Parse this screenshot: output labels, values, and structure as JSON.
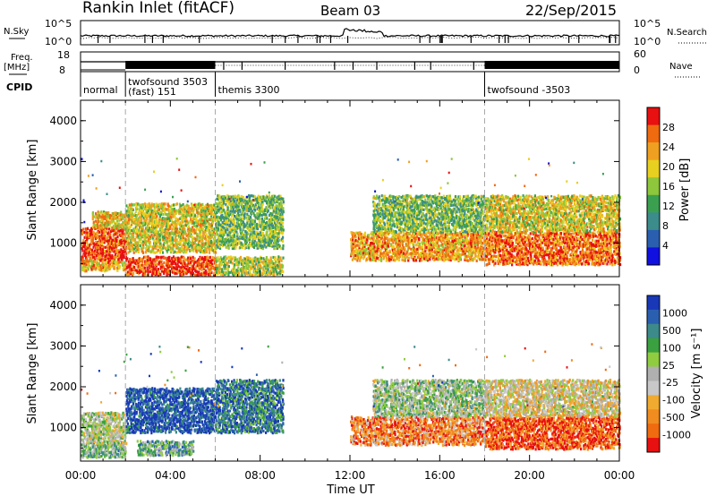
{
  "header": {
    "title": "Rankin Inlet (fitACF)",
    "beam": "Beam 03",
    "date": "22/Sep/2015"
  },
  "sky_panel": {
    "left_label": "N.Sky",
    "right_label": "N.Search",
    "left_ticks": [
      "10^5",
      "10^0"
    ],
    "right_ticks": [
      "10^5",
      "10^0"
    ]
  },
  "freq_panel": {
    "left_label_line1": "Freq.",
    "left_label_line2": "[MHz]",
    "right_label": "Nave",
    "left_ticks": [
      "18",
      "8"
    ],
    "right_ticks": [
      "60",
      "0"
    ]
  },
  "cpid": {
    "label": "CPID",
    "modes": [
      {
        "start_hour": 0.0,
        "text1": "normal",
        "text2": ""
      },
      {
        "start_hour": 2.0,
        "text1": "twofsound 3503",
        "text2": "(fast) 151"
      },
      {
        "start_hour": 6.0,
        "text1": "themis 3300",
        "text2": ""
      },
      {
        "start_hour": 18.0,
        "text1": "twofsound -3503",
        "text2": ""
      }
    ]
  },
  "colors": {
    "power_scale": [
      "#1010e0",
      "#2a5fb0",
      "#3c8c8c",
      "#3aa050",
      "#8ec63c",
      "#e8d020",
      "#f0a020",
      "#f06a10",
      "#e81010"
    ],
    "velocity_scale": [
      "#e81010",
      "#f06a10",
      "#f08c20",
      "#f0aa30",
      "#c8c8c8",
      "#b0b0b0",
      "#90cc40",
      "#3aa040",
      "#3c8a8a",
      "#2a5fb0",
      "#1838b8"
    ]
  },
  "chart_data": [
    {
      "type": "heatmap",
      "name": "power",
      "ylabel": "Slant Range [km]",
      "xlim_hours": [
        0,
        24
      ],
      "ylim_km": [
        180,
        4500
      ],
      "yticks": [
        "1000",
        "2000",
        "3000",
        "4000"
      ],
      "colorbar_label": "Power [dB]",
      "colorbar_ticks": [
        "4",
        "8",
        "12",
        "16",
        "20",
        "24",
        "28"
      ],
      "scatter_regions": [
        {
          "t0": 0.0,
          "t1": 2.0,
          "r0": 600,
          "r1": 1400,
          "level": 0.88
        },
        {
          "t0": 0.5,
          "t1": 2.0,
          "r0": 1400,
          "r1": 1800,
          "level": 0.65
        },
        {
          "t0": 0.0,
          "t1": 2.0,
          "r0": 350,
          "r1": 600,
          "level": 0.7
        },
        {
          "t0": 2.0,
          "t1": 6.0,
          "r0": 250,
          "r1": 700,
          "level": 0.9
        },
        {
          "t0": 2.0,
          "t1": 6.0,
          "r0": 800,
          "r1": 2000,
          "level": 0.6
        },
        {
          "t0": 6.0,
          "t1": 9.0,
          "r0": 250,
          "r1": 700,
          "level": 0.55
        },
        {
          "t0": 6.0,
          "t1": 9.0,
          "r0": 900,
          "r1": 2200,
          "level": 0.45
        },
        {
          "t0": 12.0,
          "t1": 18.0,
          "r0": 600,
          "r1": 1300,
          "level": 0.72
        },
        {
          "t0": 13.0,
          "t1": 18.0,
          "r0": 1300,
          "r1": 2200,
          "level": 0.45
        },
        {
          "t0": 18.0,
          "t1": 24.0,
          "r0": 500,
          "r1": 1300,
          "level": 0.82
        },
        {
          "t0": 18.0,
          "t1": 24.0,
          "r0": 1300,
          "r1": 2200,
          "level": 0.6
        }
      ]
    },
    {
      "type": "heatmap",
      "name": "velocity",
      "ylabel": "Slant Range [km]",
      "xlabel": "Time UT",
      "xlim_hours": [
        0,
        24
      ],
      "ylim_km": [
        180,
        4500
      ],
      "yticks": [
        "1000",
        "2000",
        "3000",
        "4000"
      ],
      "xticks": [
        "00:00",
        "04:00",
        "08:00",
        "12:00",
        "16:00",
        "20:00",
        "00:00"
      ],
      "colorbar_label": "Velocity [m s⁻¹]",
      "colorbar_ticks": [
        "1000",
        "500",
        "100",
        "25",
        "-25",
        "-100",
        "-500",
        "-1000"
      ],
      "scatter_regions": [
        {
          "t0": 0.0,
          "t1": 2.0,
          "r0": 600,
          "r1": 1400,
          "level": 0.5
        },
        {
          "t0": 0.0,
          "t1": 2.0,
          "r0": 300,
          "r1": 600,
          "level": 0.6
        },
        {
          "t0": 2.0,
          "t1": 6.0,
          "r0": 900,
          "r1": 2000,
          "level": 0.92
        },
        {
          "t0": 2.5,
          "t1": 5.0,
          "r0": 350,
          "r1": 700,
          "level": 0.66
        },
        {
          "t0": 6.0,
          "t1": 9.0,
          "r0": 900,
          "r1": 2200,
          "level": 0.8
        },
        {
          "t0": 12.0,
          "t1": 18.0,
          "r0": 600,
          "r1": 1300,
          "level": 0.22
        },
        {
          "t0": 13.0,
          "t1": 18.0,
          "r0": 1300,
          "r1": 2200,
          "level": 0.55
        },
        {
          "t0": 18.0,
          "t1": 24.0,
          "r0": 500,
          "r1": 1300,
          "level": 0.12
        },
        {
          "t0": 18.0,
          "t1": 24.0,
          "r0": 1300,
          "r1": 2200,
          "level": 0.42
        }
      ]
    }
  ]
}
